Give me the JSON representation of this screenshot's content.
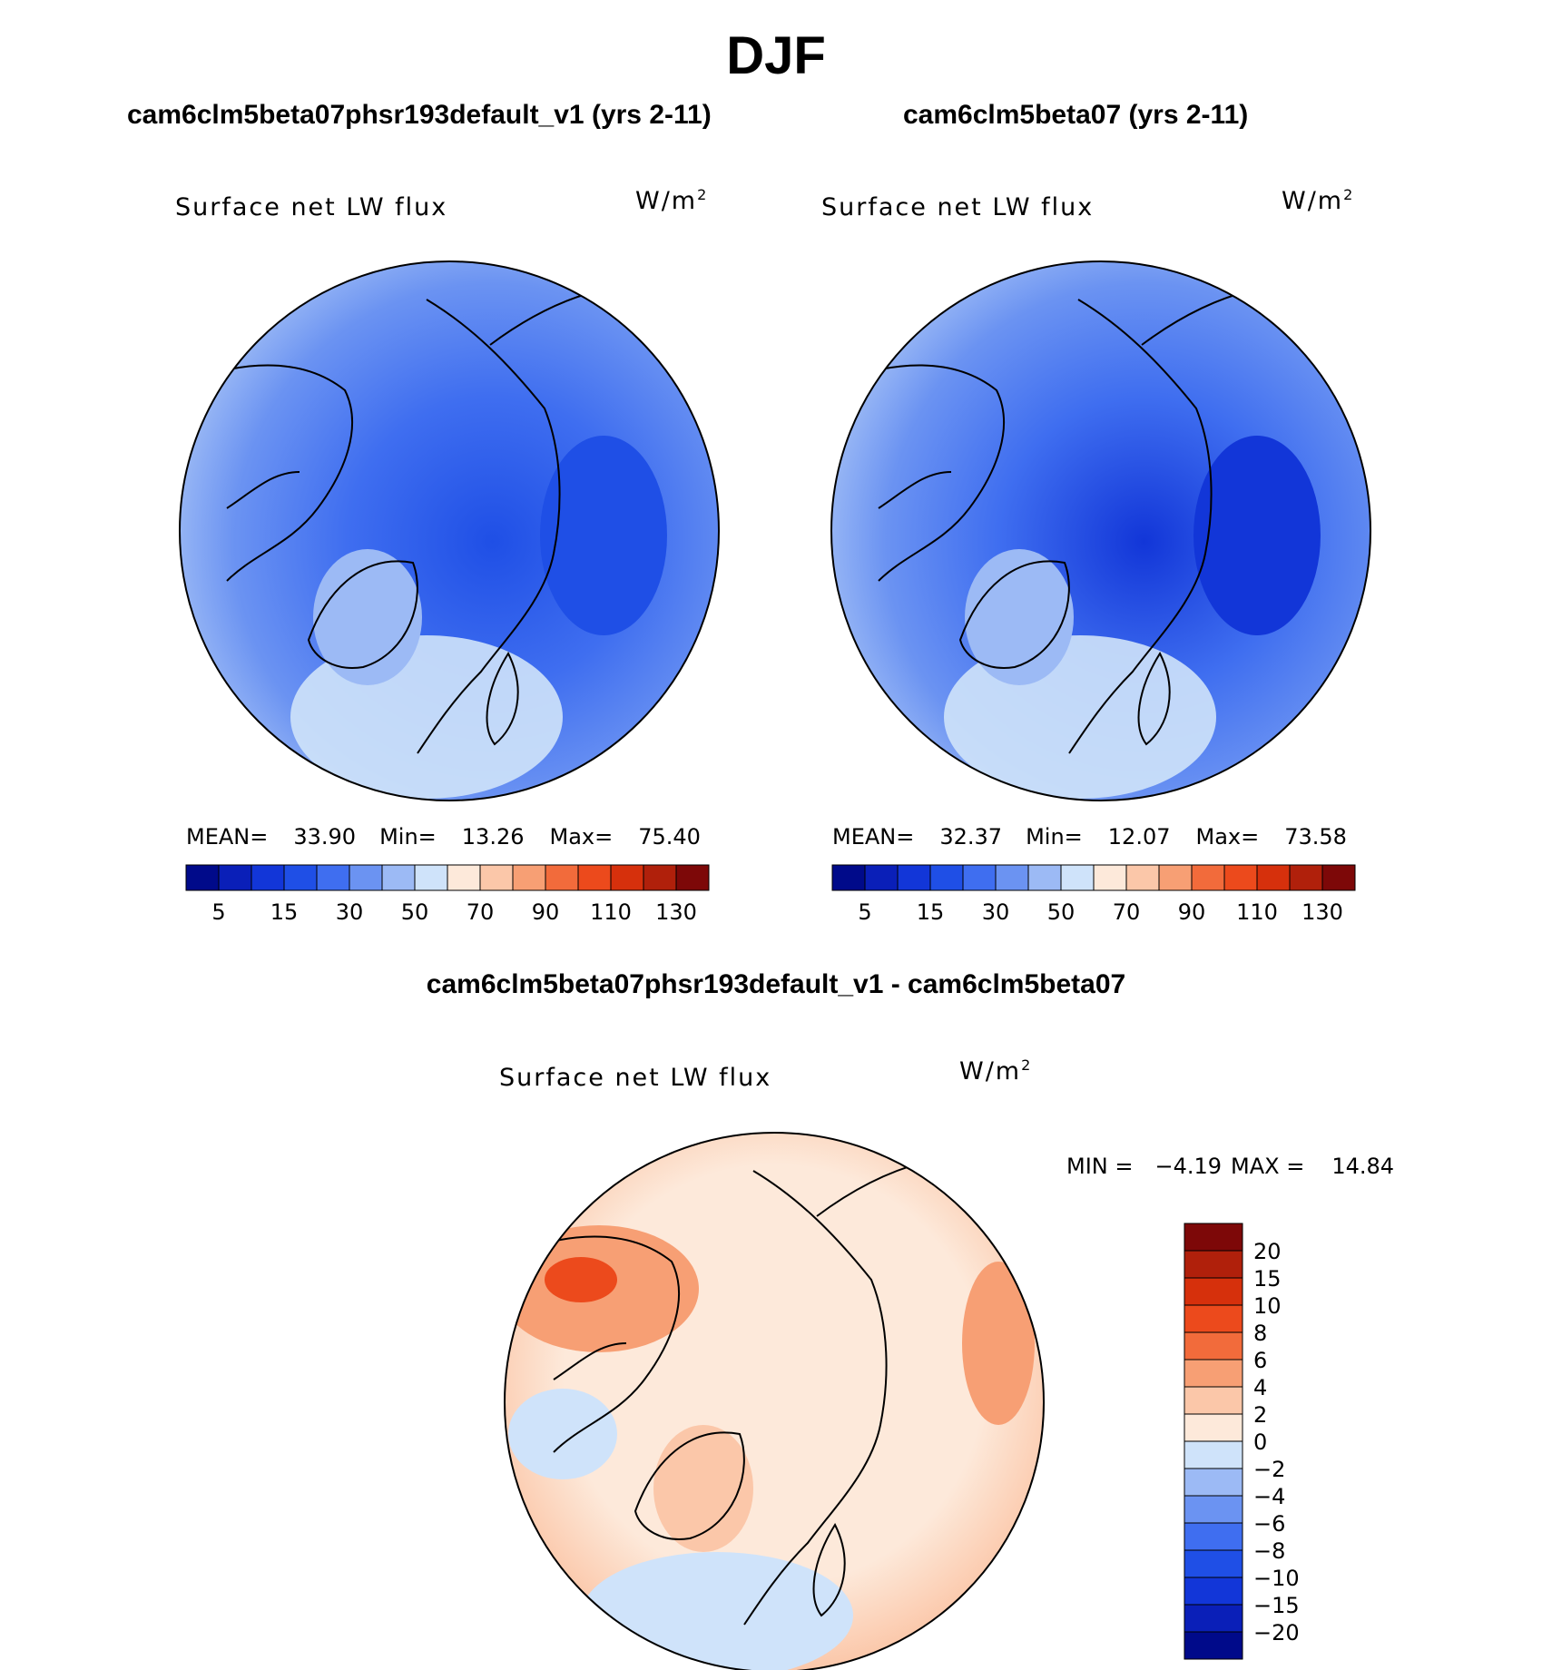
{
  "figure": {
    "season": "DJF",
    "panel1_title": "cam6clm5beta07phsr193default_v1 (yrs 2-11)",
    "panel2_title": "cam6clm5beta07 (yrs 2-11)",
    "diff_title": "cam6clm5beta07phsr193default_v1 - cam6clm5beta07"
  },
  "chart_data": [
    {
      "type": "heatmap",
      "projection": "north-polar-stereographic",
      "title": "cam6clm5beta07phsr193default_v1 (yrs 2-11)",
      "variable": "Surface net LW flux",
      "units": "W/m",
      "units_exp": "2",
      "stats": {
        "mean_label": "MEAN=",
        "mean": "33.90",
        "min_label": "Min=",
        "min": "13.26",
        "max_label": "Max=",
        "max": "75.40"
      },
      "colorbar": {
        "orientation": "horizontal",
        "levels": [
          5,
          10,
          15,
          20,
          30,
          40,
          50,
          60,
          70,
          80,
          90,
          100,
          110,
          120,
          130
        ],
        "tick_labels": [
          "5",
          "15",
          "30",
          "50",
          "70",
          "90",
          "110",
          "130"
        ],
        "colors": [
          "#000a8a",
          "#0a1fb8",
          "#1236d8",
          "#1f4fe6",
          "#3f6ef0",
          "#6b93f2",
          "#9cbaf5",
          "#cfe3fa",
          "#fde9da",
          "#fbc7a9",
          "#f79f74",
          "#f26b3b",
          "#ec4a1c",
          "#d6300c",
          "#b0200b",
          "#7d0808"
        ]
      }
    },
    {
      "type": "heatmap",
      "projection": "north-polar-stereographic",
      "title": "cam6clm5beta07 (yrs 2-11)",
      "variable": "Surface net LW flux",
      "units": "W/m",
      "units_exp": "2",
      "stats": {
        "mean_label": "MEAN=",
        "mean": "32.37",
        "min_label": "Min=",
        "min": "12.07",
        "max_label": "Max=",
        "max": "73.58"
      },
      "colorbar": {
        "orientation": "horizontal",
        "levels": [
          5,
          10,
          15,
          20,
          30,
          40,
          50,
          60,
          70,
          80,
          90,
          100,
          110,
          120,
          130
        ],
        "tick_labels": [
          "5",
          "15",
          "30",
          "50",
          "70",
          "90",
          "110",
          "130"
        ],
        "colors": [
          "#000a8a",
          "#0a1fb8",
          "#1236d8",
          "#1f4fe6",
          "#3f6ef0",
          "#6b93f2",
          "#9cbaf5",
          "#cfe3fa",
          "#fde9da",
          "#fbc7a9",
          "#f79f74",
          "#f26b3b",
          "#ec4a1c",
          "#d6300c",
          "#b0200b",
          "#7d0808"
        ]
      }
    },
    {
      "type": "heatmap",
      "projection": "north-polar-stereographic",
      "title": "cam6clm5beta07phsr193default_v1 - cam6clm5beta07",
      "variable": "Surface net LW flux",
      "units": "W/m",
      "units_exp": "2",
      "stats": {
        "min_label": "MIN =",
        "min": "−4.19",
        "max_label": "MAX =",
        "max": "14.84"
      },
      "colorbar": {
        "orientation": "vertical",
        "levels": [
          20,
          15,
          10,
          8,
          6,
          4,
          2,
          0,
          -2,
          -4,
          -6,
          -8,
          -10,
          -15,
          -20
        ],
        "tick_labels": [
          "20",
          "15",
          "10",
          "8",
          "6",
          "4",
          "2",
          "0",
          "−2",
          "−4",
          "−6",
          "−8",
          "−10",
          "−15",
          "−20"
        ],
        "colors": [
          "#7d0808",
          "#b0200b",
          "#d6300c",
          "#ec4a1c",
          "#f26b3b",
          "#f79f74",
          "#fbc7a9",
          "#fde9da",
          "#cfe3fa",
          "#9cbaf5",
          "#6b93f2",
          "#3f6ef0",
          "#1f4fe6",
          "#1236d8",
          "#0a1fb8",
          "#000a8a"
        ]
      }
    }
  ]
}
